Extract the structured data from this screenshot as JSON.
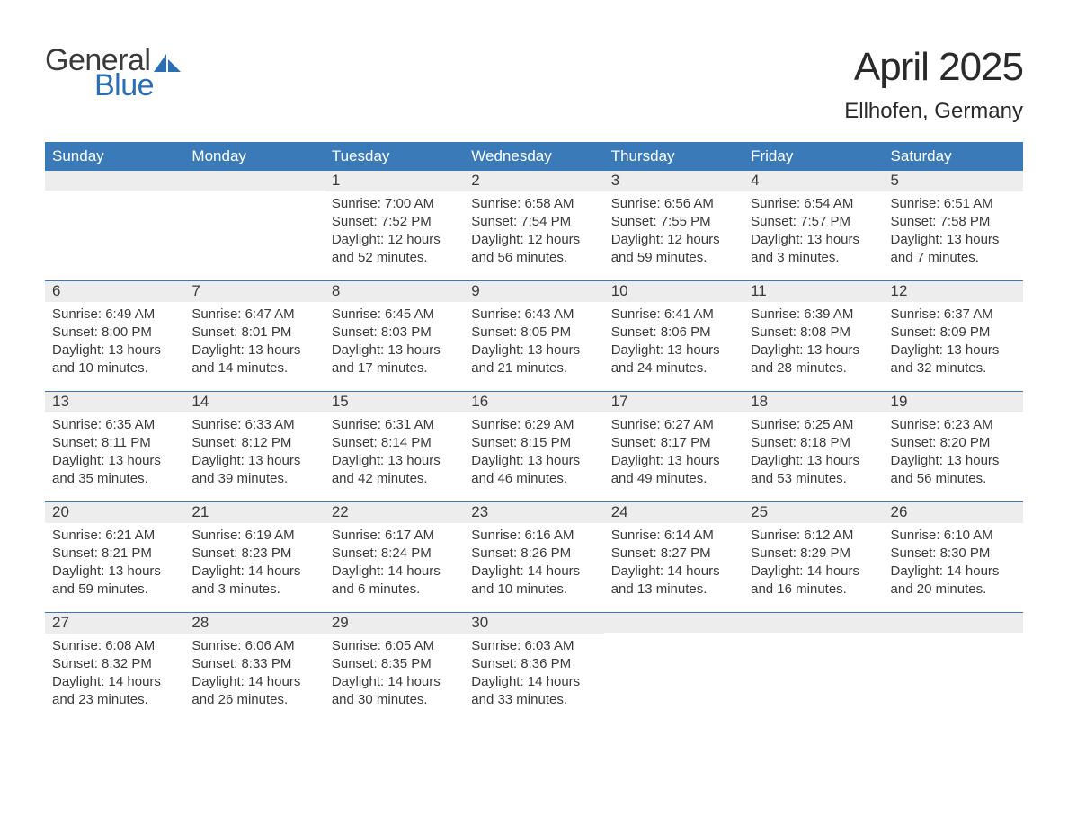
{
  "logo": {
    "word1": "General",
    "word2": "Blue",
    "icon_color": "#2a6eb5"
  },
  "title": "April 2025",
  "location": "Ellhofen, Germany",
  "colors": {
    "header_bg": "#3a7ab8",
    "header_text": "#ffffff",
    "daynum_bg": "#ededed",
    "text": "#3a3a3a",
    "row_border": "#3a7ab8",
    "logo_blue": "#2a6eb5",
    "background": "#ffffff"
  },
  "typography": {
    "title_fontsize": 44,
    "location_fontsize": 24,
    "weekday_fontsize": 17,
    "daynum_fontsize": 17,
    "content_fontsize": 15,
    "logo_fontsize": 34
  },
  "weekdays": [
    "Sunday",
    "Monday",
    "Tuesday",
    "Wednesday",
    "Thursday",
    "Friday",
    "Saturday"
  ],
  "weeks": [
    [
      {
        "day": "",
        "sunrise": "",
        "sunset": "",
        "daylight": ""
      },
      {
        "day": "",
        "sunrise": "",
        "sunset": "",
        "daylight": ""
      },
      {
        "day": "1",
        "sunrise": "Sunrise: 7:00 AM",
        "sunset": "Sunset: 7:52 PM",
        "daylight": "Daylight: 12 hours and 52 minutes."
      },
      {
        "day": "2",
        "sunrise": "Sunrise: 6:58 AM",
        "sunset": "Sunset: 7:54 PM",
        "daylight": "Daylight: 12 hours and 56 minutes."
      },
      {
        "day": "3",
        "sunrise": "Sunrise: 6:56 AM",
        "sunset": "Sunset: 7:55 PM",
        "daylight": "Daylight: 12 hours and 59 minutes."
      },
      {
        "day": "4",
        "sunrise": "Sunrise: 6:54 AM",
        "sunset": "Sunset: 7:57 PM",
        "daylight": "Daylight: 13 hours and 3 minutes."
      },
      {
        "day": "5",
        "sunrise": "Sunrise: 6:51 AM",
        "sunset": "Sunset: 7:58 PM",
        "daylight": "Daylight: 13 hours and 7 minutes."
      }
    ],
    [
      {
        "day": "6",
        "sunrise": "Sunrise: 6:49 AM",
        "sunset": "Sunset: 8:00 PM",
        "daylight": "Daylight: 13 hours and 10 minutes."
      },
      {
        "day": "7",
        "sunrise": "Sunrise: 6:47 AM",
        "sunset": "Sunset: 8:01 PM",
        "daylight": "Daylight: 13 hours and 14 minutes."
      },
      {
        "day": "8",
        "sunrise": "Sunrise: 6:45 AM",
        "sunset": "Sunset: 8:03 PM",
        "daylight": "Daylight: 13 hours and 17 minutes."
      },
      {
        "day": "9",
        "sunrise": "Sunrise: 6:43 AM",
        "sunset": "Sunset: 8:05 PM",
        "daylight": "Daylight: 13 hours and 21 minutes."
      },
      {
        "day": "10",
        "sunrise": "Sunrise: 6:41 AM",
        "sunset": "Sunset: 8:06 PM",
        "daylight": "Daylight: 13 hours and 24 minutes."
      },
      {
        "day": "11",
        "sunrise": "Sunrise: 6:39 AM",
        "sunset": "Sunset: 8:08 PM",
        "daylight": "Daylight: 13 hours and 28 minutes."
      },
      {
        "day": "12",
        "sunrise": "Sunrise: 6:37 AM",
        "sunset": "Sunset: 8:09 PM",
        "daylight": "Daylight: 13 hours and 32 minutes."
      }
    ],
    [
      {
        "day": "13",
        "sunrise": "Sunrise: 6:35 AM",
        "sunset": "Sunset: 8:11 PM",
        "daylight": "Daylight: 13 hours and 35 minutes."
      },
      {
        "day": "14",
        "sunrise": "Sunrise: 6:33 AM",
        "sunset": "Sunset: 8:12 PM",
        "daylight": "Daylight: 13 hours and 39 minutes."
      },
      {
        "day": "15",
        "sunrise": "Sunrise: 6:31 AM",
        "sunset": "Sunset: 8:14 PM",
        "daylight": "Daylight: 13 hours and 42 minutes."
      },
      {
        "day": "16",
        "sunrise": "Sunrise: 6:29 AM",
        "sunset": "Sunset: 8:15 PM",
        "daylight": "Daylight: 13 hours and 46 minutes."
      },
      {
        "day": "17",
        "sunrise": "Sunrise: 6:27 AM",
        "sunset": "Sunset: 8:17 PM",
        "daylight": "Daylight: 13 hours and 49 minutes."
      },
      {
        "day": "18",
        "sunrise": "Sunrise: 6:25 AM",
        "sunset": "Sunset: 8:18 PM",
        "daylight": "Daylight: 13 hours and 53 minutes."
      },
      {
        "day": "19",
        "sunrise": "Sunrise: 6:23 AM",
        "sunset": "Sunset: 8:20 PM",
        "daylight": "Daylight: 13 hours and 56 minutes."
      }
    ],
    [
      {
        "day": "20",
        "sunrise": "Sunrise: 6:21 AM",
        "sunset": "Sunset: 8:21 PM",
        "daylight": "Daylight: 13 hours and 59 minutes."
      },
      {
        "day": "21",
        "sunrise": "Sunrise: 6:19 AM",
        "sunset": "Sunset: 8:23 PM",
        "daylight": "Daylight: 14 hours and 3 minutes."
      },
      {
        "day": "22",
        "sunrise": "Sunrise: 6:17 AM",
        "sunset": "Sunset: 8:24 PM",
        "daylight": "Daylight: 14 hours and 6 minutes."
      },
      {
        "day": "23",
        "sunrise": "Sunrise: 6:16 AM",
        "sunset": "Sunset: 8:26 PM",
        "daylight": "Daylight: 14 hours and 10 minutes."
      },
      {
        "day": "24",
        "sunrise": "Sunrise: 6:14 AM",
        "sunset": "Sunset: 8:27 PM",
        "daylight": "Daylight: 14 hours and 13 minutes."
      },
      {
        "day": "25",
        "sunrise": "Sunrise: 6:12 AM",
        "sunset": "Sunset: 8:29 PM",
        "daylight": "Daylight: 14 hours and 16 minutes."
      },
      {
        "day": "26",
        "sunrise": "Sunrise: 6:10 AM",
        "sunset": "Sunset: 8:30 PM",
        "daylight": "Daylight: 14 hours and 20 minutes."
      }
    ],
    [
      {
        "day": "27",
        "sunrise": "Sunrise: 6:08 AM",
        "sunset": "Sunset: 8:32 PM",
        "daylight": "Daylight: 14 hours and 23 minutes."
      },
      {
        "day": "28",
        "sunrise": "Sunrise: 6:06 AM",
        "sunset": "Sunset: 8:33 PM",
        "daylight": "Daylight: 14 hours and 26 minutes."
      },
      {
        "day": "29",
        "sunrise": "Sunrise: 6:05 AM",
        "sunset": "Sunset: 8:35 PM",
        "daylight": "Daylight: 14 hours and 30 minutes."
      },
      {
        "day": "30",
        "sunrise": "Sunrise: 6:03 AM",
        "sunset": "Sunset: 8:36 PM",
        "daylight": "Daylight: 14 hours and 33 minutes."
      },
      {
        "day": "",
        "sunrise": "",
        "sunset": "",
        "daylight": ""
      },
      {
        "day": "",
        "sunrise": "",
        "sunset": "",
        "daylight": ""
      },
      {
        "day": "",
        "sunrise": "",
        "sunset": "",
        "daylight": ""
      }
    ]
  ]
}
